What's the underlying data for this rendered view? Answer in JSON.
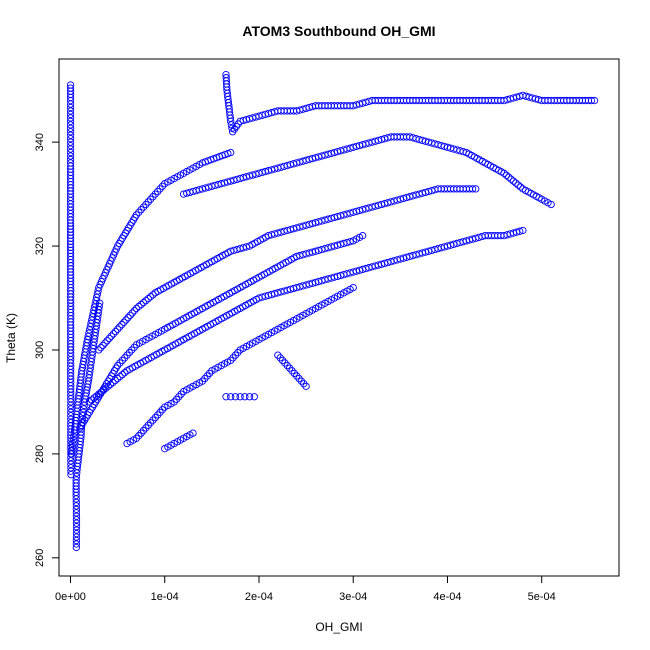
{
  "chart_data": {
    "type": "scatter",
    "title": "ATOM3 Southbound OH_GMI",
    "xlabel": "OH_GMI",
    "ylabel": "Theta (K)",
    "xlim": [
      -1.22e-05,
      0.000582
    ],
    "ylim": [
      256.5,
      356
    ],
    "xticks": [
      0,
      0.0001,
      0.0002,
      0.0003,
      0.0004,
      0.0005
    ],
    "xtick_labels": [
      "0e+00",
      "1e-04",
      "2e-04",
      "3e-04",
      "4e-04",
      "5e-04"
    ],
    "yticks": [
      260,
      280,
      300,
      320,
      340
    ],
    "ytick_labels": [
      "260",
      "280",
      "300",
      "320",
      "340"
    ],
    "grid": false,
    "legend": "none",
    "marker": "open-circle",
    "series_color": "#0000ff",
    "series": [
      {
        "x": [
          1e-07,
          1e-07,
          1e-07,
          1e-07,
          1e-07,
          1e-07,
          1e-07,
          1e-07,
          2e-07,
          2e-07,
          2e-07,
          2e-07,
          3e-07,
          3e-07,
          3e-07,
          4e-07,
          4e-07,
          5e-07
        ],
        "y": [
          351,
          348,
          344,
          340,
          336,
          330,
          325,
          318,
          312,
          306,
          300,
          295,
          290,
          286,
          283,
          280,
          278,
          276
        ]
      },
      {
        "x": [
          6.2e-06,
          6.3e-06,
          6.4e-06,
          6.3e-06,
          6.2e-06,
          6e-06,
          6e-06,
          7e-06,
          9e-06,
          1.1e-05,
          1.2e-05,
          1.5e-05,
          1.9e-05,
          2.3e-05,
          2.7e-05,
          3.1e-05
        ],
        "y": [
          262,
          264,
          266,
          268,
          270,
          272,
          275,
          277,
          280,
          283,
          286,
          290,
          294,
          299,
          304,
          309
        ]
      },
      {
        "x": [
          1.2e-06,
          4e-06,
          8e-06,
          1.2e-05,
          1.8e-05,
          2.4e-05,
          3e-05,
          4e-05,
          5e-05,
          6e-05,
          7e-05,
          8e-05,
          9e-05,
          0.0001,
          0.00011,
          0.00012,
          0.00013,
          0.00014,
          0.000155,
          0.00017
        ],
        "y": [
          280,
          284,
          290,
          296,
          302,
          307,
          312,
          316,
          320,
          323,
          326,
          328,
          330,
          332,
          333,
          334,
          335,
          336,
          337,
          338
        ]
      },
      {
        "x": [
          0.000165,
          0.000166,
          0.000168,
          0.00017,
          0.000172,
          0.00018,
          0.0002,
          0.00022,
          0.00024,
          0.00026,
          0.00028,
          0.0003,
          0.00032,
          0.00034,
          0.00036,
          0.00038,
          0.0004,
          0.00042,
          0.00044,
          0.00046,
          0.00048,
          0.0005,
          0.00052,
          0.00054,
          0.000556
        ],
        "y": [
          353,
          350,
          347,
          344,
          342,
          344,
          345,
          346,
          346,
          347,
          347,
          347,
          348,
          348,
          348,
          348,
          348,
          348,
          348,
          348,
          349,
          348,
          348,
          348,
          348
        ]
      },
      {
        "x": [
          1e-05,
          2e-05,
          3e-05,
          4e-05,
          5e-05,
          6e-05,
          7e-05,
          8e-05,
          9e-05,
          0.0001,
          0.00012,
          0.00014,
          0.00016,
          0.00018,
          0.0002,
          0.00022,
          0.00024,
          0.00026,
          0.00028,
          0.0003,
          0.00031
        ],
        "y": [
          285,
          288,
          291,
          294,
          297,
          299,
          301,
          302,
          303,
          304,
          306,
          308,
          310,
          312,
          314,
          316,
          318,
          319,
          320,
          321,
          322
        ]
      },
      {
        "x": [
          2e-05,
          4e-05,
          6e-05,
          8e-05,
          0.0001,
          0.00012,
          0.00014,
          0.00016,
          0.00018,
          0.0002,
          0.00022,
          0.00024,
          0.00026,
          0.00028,
          0.0003,
          0.00032,
          0.00034,
          0.00036,
          0.00038,
          0.0004,
          0.00042,
          0.00044,
          0.00046,
          0.00048
        ],
        "y": [
          290,
          293,
          296,
          298,
          300,
          302,
          304,
          306,
          308,
          310,
          311,
          312,
          313,
          314,
          315,
          316,
          317,
          318,
          319,
          320,
          321,
          322,
          322,
          323
        ]
      },
      {
        "x": [
          0.00012,
          0.00014,
          0.00016,
          0.00018,
          0.0002,
          0.00022,
          0.00024,
          0.00026,
          0.00028,
          0.0003,
          0.00032,
          0.00034,
          0.00036,
          0.00038,
          0.0004,
          0.00042,
          0.00044,
          0.00046,
          0.00048,
          0.0005,
          0.00051
        ],
        "y": [
          330,
          331,
          332,
          333,
          334,
          335,
          336,
          337,
          338,
          339,
          340,
          341,
          341,
          340,
          339,
          338,
          336,
          334,
          331,
          329,
          328
        ]
      },
      {
        "x": [
          0.000165,
          0.00017,
          0.000175,
          0.00018,
          0.000185,
          0.00019,
          0.000195
        ],
        "y": [
          291,
          291,
          291,
          291,
          291,
          291,
          291
        ]
      },
      {
        "x": [
          6e-05,
          7e-05,
          8e-05,
          9e-05,
          0.0001,
          0.00011,
          0.00012,
          0.00013,
          0.00014,
          0.00015,
          0.00016,
          0.00017,
          0.00018,
          0.00019,
          0.0002,
          0.00021,
          0.00022,
          0.00023,
          0.00024,
          0.00025,
          0.00026,
          0.00027,
          0.00028,
          0.00029,
          0.0003
        ],
        "y": [
          282,
          283,
          285,
          287,
          289,
          290,
          292,
          293,
          294,
          296,
          297,
          298,
          300,
          301,
          302,
          303,
          304,
          305,
          306,
          307,
          308,
          309,
          310,
          311,
          312
        ]
      },
      {
        "x": [
          0.00022,
          0.00023,
          0.00024,
          0.00025
        ],
        "y": [
          299,
          297,
          295,
          293
        ]
      },
      {
        "x": [
          0.0001,
          0.00011,
          0.00012,
          0.00013
        ],
        "y": [
          281,
          282,
          283,
          284
        ]
      },
      {
        "x": [
          3e-05,
          5e-05,
          7e-05,
          9e-05,
          0.00011,
          0.00013,
          0.00015,
          0.00017,
          0.00019,
          0.00021,
          0.00023,
          0.00025,
          0.00027,
          0.00029,
          0.00031,
          0.00033,
          0.00035,
          0.00037,
          0.00039,
          0.00041,
          0.00043
        ],
        "y": [
          300,
          304,
          308,
          311,
          313,
          315,
          317,
          319,
          320,
          322,
          323,
          324,
          325,
          326,
          327,
          328,
          329,
          330,
          331,
          331,
          331
        ]
      }
    ]
  }
}
